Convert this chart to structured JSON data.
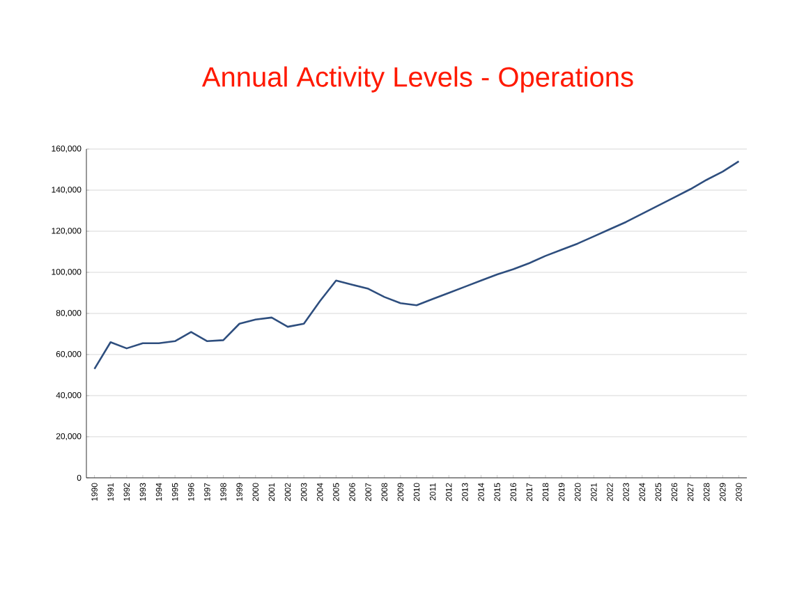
{
  "chart_data": {
    "type": "line",
    "title": "Annual Activity Levels - Operations",
    "categories": [
      "1990",
      "1991",
      "1992",
      "1993",
      "1994",
      "1995",
      "1996",
      "1997",
      "1998",
      "1999",
      "2000",
      "2001",
      "2002",
      "2003",
      "2004",
      "2005",
      "2006",
      "2007",
      "2008",
      "2009",
      "2010",
      "2011",
      "2012",
      "2013",
      "2014",
      "2015",
      "2016",
      "2017",
      "2018",
      "2019",
      "2020",
      "2021",
      "2022",
      "2023",
      "2024",
      "2025",
      "2026",
      "2027",
      "2028",
      "2029",
      "2030"
    ],
    "series": [
      {
        "color": "#2e4e7e",
        "values": [
          53000,
          66000,
          63000,
          65500,
          65500,
          66500,
          71000,
          66500,
          67000,
          75000,
          77000,
          78000,
          73500,
          75000,
          86000,
          96000,
          94000,
          92000,
          88000,
          85000,
          84000,
          87000,
          90000,
          93000,
          96000,
          99000,
          101500,
          104500,
          108000,
          111000,
          114000,
          117500,
          121000,
          124500,
          128500,
          132500,
          136500,
          140500,
          145000,
          149000,
          154000
        ]
      }
    ],
    "ylim": [
      0,
      160000
    ],
    "yticks": [
      {
        "value": 0,
        "label": "0"
      },
      {
        "value": 20000,
        "label": "20,000"
      },
      {
        "value": 40000,
        "label": "40,000"
      },
      {
        "value": 60000,
        "label": "60,000"
      },
      {
        "value": 80000,
        "label": "80,000"
      },
      {
        "value": 100000,
        "label": "100,000"
      },
      {
        "value": 120000,
        "label": "120,000"
      },
      {
        "value": 140000,
        "label": "140,000"
      },
      {
        "value": 160000,
        "label": "160,000"
      }
    ],
    "grid": "y",
    "marker": "none",
    "line_style": "solid"
  }
}
